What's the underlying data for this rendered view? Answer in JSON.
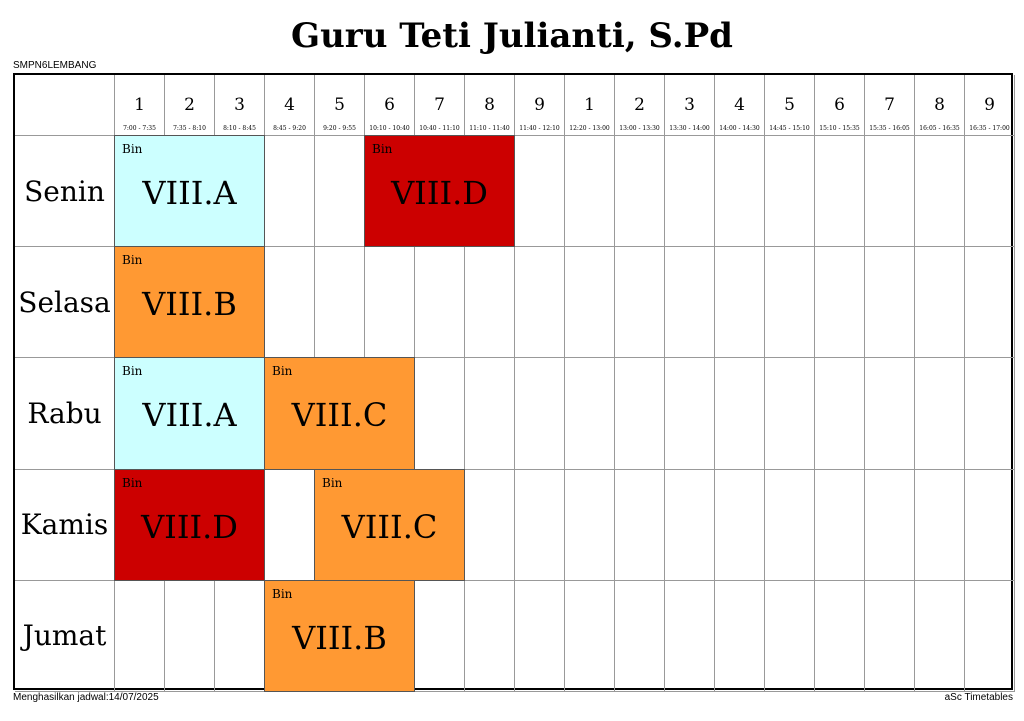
{
  "title": "Guru  Teti Julianti, S.Pd",
  "school": "SMPN6LEMBANG",
  "footer_left": "Menghasilkan jadwal:14/07/2025",
  "footer_right": "aSc Timetables",
  "colors": {
    "cyan": "#ccffff",
    "red": "#cc0000",
    "orange": "#ff9933"
  },
  "periods": [
    {
      "num": "1",
      "time": "7:00 - 7:35"
    },
    {
      "num": "2",
      "time": "7:35 - 8:10"
    },
    {
      "num": "3",
      "time": "8:10 - 8:45"
    },
    {
      "num": "4",
      "time": "8:45 - 9:20"
    },
    {
      "num": "5",
      "time": "9:20 - 9:55"
    },
    {
      "num": "6",
      "time": "10:10 - 10:40"
    },
    {
      "num": "7",
      "time": "10:40 - 11:10"
    },
    {
      "num": "8",
      "time": "11:10 - 11:40"
    },
    {
      "num": "9",
      "time": "11:40 - 12:10"
    },
    {
      "num": "1",
      "time": "12:20 - 13:00"
    },
    {
      "num": "2",
      "time": "13:00 - 13:30"
    },
    {
      "num": "3",
      "time": "13:30 - 14:00"
    },
    {
      "num": "4",
      "time": "14:00 - 14:30"
    },
    {
      "num": "5",
      "time": "14:45 - 15:10"
    },
    {
      "num": "6",
      "time": "15:10 - 15:35"
    },
    {
      "num": "7",
      "time": "15:35 - 16:05"
    },
    {
      "num": "8",
      "time": "16:05 - 16:35"
    },
    {
      "num": "9",
      "time": "16:35 - 17:00"
    }
  ],
  "days": [
    "Senin",
    "Selasa",
    "Rabu",
    "Kamis",
    "Jumat"
  ],
  "lessons": [
    {
      "day": 0,
      "start": 1,
      "span": 3,
      "subject": "Bin",
      "class": "VIII.A",
      "color": "cyan"
    },
    {
      "day": 0,
      "start": 6,
      "span": 3,
      "subject": "Bin",
      "class": "VIII.D",
      "color": "red"
    },
    {
      "day": 1,
      "start": 1,
      "span": 3,
      "subject": "Bin",
      "class": "VIII.B",
      "color": "orange"
    },
    {
      "day": 2,
      "start": 1,
      "span": 3,
      "subject": "Bin",
      "class": "VIII.A",
      "color": "cyan"
    },
    {
      "day": 2,
      "start": 4,
      "span": 3,
      "subject": "Bin",
      "class": "VIII.C",
      "color": "orange"
    },
    {
      "day": 3,
      "start": 1,
      "span": 3,
      "subject": "Bin",
      "class": "VIII.D",
      "color": "red"
    },
    {
      "day": 3,
      "start": 5,
      "span": 3,
      "subject": "Bin",
      "class": "VIII.C",
      "color": "orange"
    },
    {
      "day": 4,
      "start": 4,
      "span": 3,
      "subject": "Bin",
      "class": "VIII.B",
      "color": "orange"
    }
  ]
}
